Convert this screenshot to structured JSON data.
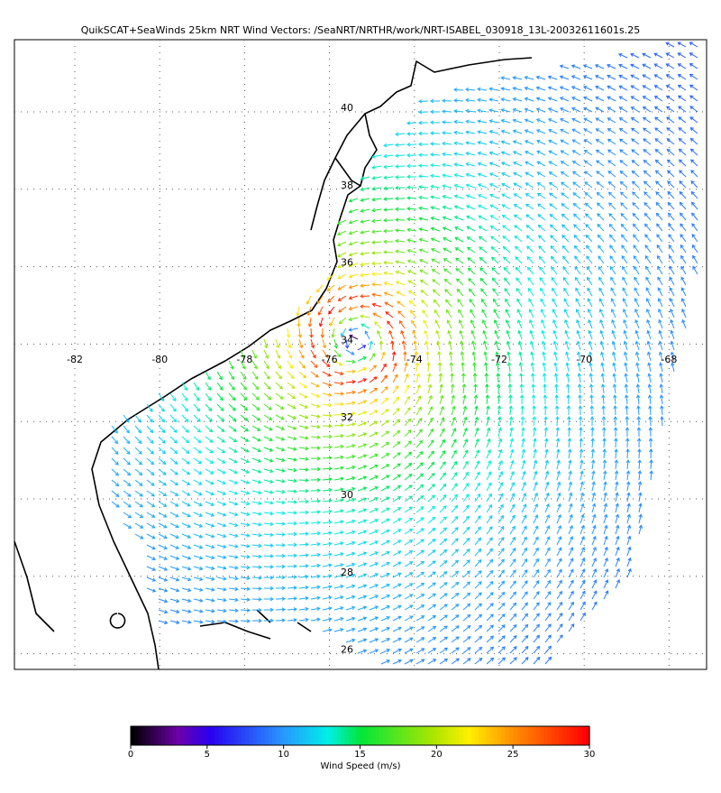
{
  "title": "QuikSCAT+SeaWinds 25km NRT Wind Vectors: /SeaNRT/NRTHR/work/NRT-ISABEL_030918_13L-20032611601s.25",
  "map": {
    "lat_ticks": [
      40,
      38,
      36,
      34,
      32,
      30,
      28,
      26
    ],
    "lon_ticks": [
      -82,
      -80,
      -78,
      -76,
      -74,
      -72,
      -70,
      -68
    ]
  },
  "colorbar": {
    "label": "Wind Speed (m/s)",
    "range": [
      0,
      30
    ],
    "ticks": [
      0,
      5,
      10,
      15,
      20,
      25,
      30
    ]
  }
}
